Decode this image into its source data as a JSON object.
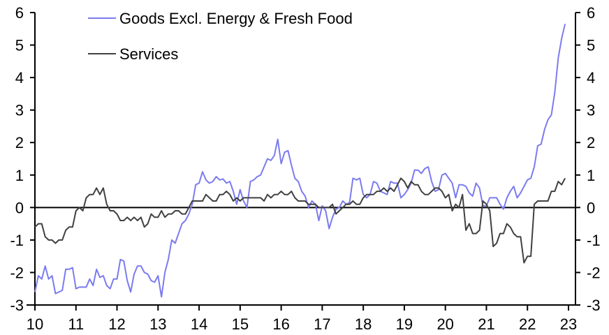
{
  "chart_data": {
    "type": "line",
    "title": "",
    "xlabel": "",
    "ylabel": "",
    "ylim": [
      -3,
      6
    ],
    "xlim": [
      2010,
      2023
    ],
    "yticks": [
      -3,
      -2,
      -1,
      0,
      1,
      2,
      3,
      4,
      5,
      6
    ],
    "ytick_labels": [
      "-3",
      "-2",
      "-1",
      "0",
      "1",
      "2",
      "3",
      "4",
      "5",
      "6"
    ],
    "xticks": [
      2010,
      2011,
      2012,
      2013,
      2014,
      2015,
      2016,
      2017,
      2018,
      2019,
      2020,
      2021,
      2022,
      2023
    ],
    "xtick_labels": [
      "10",
      "11",
      "12",
      "13",
      "14",
      "15",
      "16",
      "17",
      "18",
      "19",
      "20",
      "21",
      "22",
      "23"
    ],
    "grid": false,
    "dual_axis": true,
    "legend_placement": "top-left",
    "start": 2010.0,
    "step": 0.08333,
    "series": [
      {
        "name": "Goods Excl. Energy & Fresh Food",
        "color": "#7b7bf0",
        "values": [
          -2.6,
          -2.1,
          -2.2,
          -1.8,
          -2.2,
          -2.1,
          -2.65,
          -2.6,
          -2.55,
          -1.9,
          -1.9,
          -1.85,
          -2.5,
          -2.45,
          -2.45,
          -2.45,
          -2.2,
          -2.4,
          -1.9,
          -2.15,
          -2.1,
          -2.4,
          -2.5,
          -2.2,
          -2.2,
          -1.6,
          -1.65,
          -2.25,
          -2.6,
          -2.05,
          -1.8,
          -1.8,
          -2.0,
          -2.05,
          -2.25,
          -2.3,
          -2.1,
          -2.75,
          -2.0,
          -1.6,
          -1.0,
          -1.1,
          -0.8,
          -0.5,
          -0.4,
          -0.2,
          0.1,
          0.7,
          0.75,
          1.1,
          0.85,
          0.75,
          0.8,
          0.95,
          0.85,
          0.88,
          0.75,
          0.8,
          0.5,
          0.1,
          0.55,
          0.2,
          0.0,
          0.8,
          0.85,
          0.95,
          1.0,
          1.25,
          1.5,
          1.45,
          1.6,
          2.1,
          1.35,
          1.7,
          1.75,
          1.3,
          0.9,
          0.8,
          0.5,
          0.35,
          0.0,
          0.2,
          0.1,
          -0.4,
          0.05,
          -0.1,
          -0.65,
          -0.3,
          -0.05,
          0.0,
          0.2,
          0.1,
          0.15,
          0.9,
          0.85,
          0.9,
          0.4,
          0.3,
          0.4,
          0.8,
          0.75,
          0.5,
          0.45,
          0.4,
          0.8,
          0.75,
          0.75,
          0.3,
          0.4,
          0.55,
          0.75,
          1.15,
          1.15,
          1.05,
          1.2,
          1.25,
          0.8,
          0.5,
          0.55,
          1.0,
          1.05,
          0.9,
          0.75,
          0.3,
          0.7,
          0.7,
          0.65,
          0.45,
          0.35,
          0.75,
          0.6,
          0.05,
          0.05,
          0.3,
          0.3,
          0.3,
          0.1,
          -0.05,
          0.3,
          0.5,
          0.65,
          0.3,
          0.45,
          0.65,
          0.85,
          0.9,
          1.25,
          1.9,
          1.95,
          2.4,
          2.7,
          2.85,
          3.55,
          4.6,
          5.2,
          5.65
        ]
      },
      {
        "name": "Services",
        "color": "#404040",
        "values": [
          -0.6,
          -0.5,
          -0.5,
          -0.9,
          -1.0,
          -1.0,
          -1.1,
          -1.0,
          -1.0,
          -0.7,
          -0.6,
          -0.6,
          -0.1,
          0.0,
          -0.1,
          0.3,
          0.4,
          0.4,
          0.6,
          0.4,
          0.6,
          0.1,
          -0.1,
          -0.1,
          -0.2,
          -0.4,
          -0.4,
          -0.3,
          -0.4,
          -0.3,
          -0.4,
          -0.3,
          -0.6,
          -0.5,
          -0.2,
          -0.3,
          -0.3,
          -0.1,
          -0.3,
          -0.2,
          -0.2,
          -0.1,
          -0.1,
          -0.2,
          -0.2,
          0.0,
          0.2,
          0.2,
          0.2,
          0.2,
          0.4,
          0.3,
          0.2,
          0.2,
          0.4,
          0.4,
          0.5,
          0.4,
          0.2,
          0.3,
          0.2,
          0.3,
          0.3,
          0.3,
          0.3,
          0.3,
          0.3,
          0.2,
          0.4,
          0.3,
          0.4,
          0.4,
          0.5,
          0.4,
          0.4,
          0.5,
          0.3,
          0.2,
          0.2,
          0.2,
          0.1,
          0.1,
          0.1,
          0.0,
          0.0,
          0.0,
          0.0,
          0.1,
          -0.2,
          -0.1,
          0.0,
          0.1,
          0.1,
          0.2,
          0.1,
          0.1,
          0.3,
          0.4,
          0.4,
          0.4,
          0.5,
          0.5,
          0.6,
          0.5,
          0.6,
          0.5,
          0.7,
          0.9,
          0.8,
          0.6,
          0.8,
          0.7,
          0.7,
          0.5,
          0.4,
          0.4,
          0.5,
          0.6,
          0.6,
          0.5,
          0.3,
          0.4,
          -0.1,
          0.1,
          0.0,
          0.4,
          -0.7,
          -0.5,
          -0.8,
          -0.8,
          -0.7,
          0.2,
          0.1,
          -0.1,
          -1.2,
          -1.1,
          -0.8,
          -0.8,
          -0.5,
          -0.6,
          -0.8,
          -0.9,
          -0.9,
          -1.7,
          -1.5,
          -1.5,
          0.1,
          0.2,
          0.2,
          0.2,
          0.2,
          0.5,
          0.5,
          0.8,
          0.7,
          0.9
        ]
      }
    ]
  }
}
